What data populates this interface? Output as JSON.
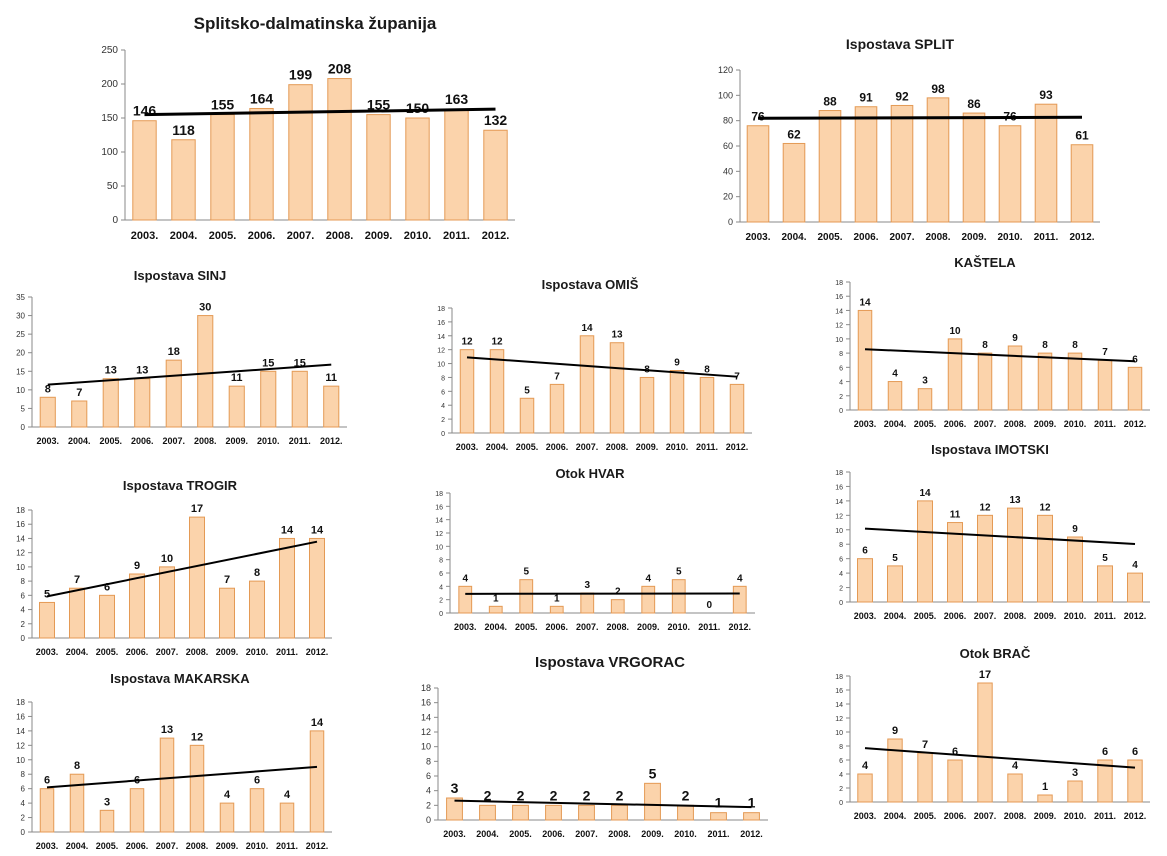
{
  "bar_fill": "#fbd3ab",
  "bar_stroke": "#e49a55",
  "trend_color": "#000000",
  "chart_data": [
    {
      "type": "bar",
      "title": "Splitsko-dalmatinska županija",
      "categories": [
        "2003.",
        "2004.",
        "2005.",
        "2006.",
        "2007.",
        "2008.",
        "2009.",
        "2010.",
        "2011.",
        "2012."
      ],
      "values": [
        146,
        118,
        155,
        164,
        199,
        208,
        155,
        150,
        163,
        132
      ],
      "ylim": [
        0,
        250
      ],
      "yticks": [
        "0",
        "50",
        "100",
        "150",
        "200",
        "250"
      ],
      "trendline": "linear"
    },
    {
      "type": "bar",
      "title": "Ispostava SPLIT",
      "categories": [
        "2003.",
        "2004.",
        "2005.",
        "2006.",
        "2007.",
        "2008.",
        "2009.",
        "2010.",
        "2011.",
        "2012."
      ],
      "values": [
        76,
        62,
        88,
        91,
        92,
        98,
        86,
        76,
        93,
        61
      ],
      "ylim": [
        0,
        120
      ],
      "yticks": [
        "0",
        "20",
        "40",
        "60",
        "80",
        "100",
        "120"
      ],
      "trendline": "linear"
    },
    {
      "type": "bar",
      "title": "Ispostava SINJ",
      "categories": [
        "2003.",
        "2004.",
        "2005.",
        "2006.",
        "2007.",
        "2008.",
        "2009.",
        "2010.",
        "2011.",
        "2012."
      ],
      "values": [
        8,
        7,
        13,
        13,
        18,
        30,
        11,
        15,
        15,
        11
      ],
      "ylim": [
        0,
        35
      ],
      "yticks": [
        "0",
        "5",
        "10",
        "15",
        "20",
        "25",
        "30",
        "35"
      ],
      "trendline": "linear"
    },
    {
      "type": "bar",
      "title": "Ispostava OMIŠ",
      "categories": [
        "2003.",
        "2004.",
        "2005.",
        "2006.",
        "2007.",
        "2008.",
        "2009.",
        "2010.",
        "2011.",
        "2012."
      ],
      "values": [
        12,
        12,
        5,
        7,
        14,
        13,
        8,
        9,
        8,
        7
      ],
      "ylim": [
        0,
        18
      ],
      "yticks": [
        "0",
        "2",
        "4",
        "6",
        "8",
        "10",
        "12",
        "14",
        "16",
        "18"
      ],
      "trendline": "linear"
    },
    {
      "type": "bar",
      "title": "KAŠTELA",
      "categories": [
        "2003.",
        "2004.",
        "2005.",
        "2006.",
        "2007.",
        "2008.",
        "2009.",
        "2010.",
        "2011.",
        "2012."
      ],
      "values": [
        14,
        4,
        3,
        10,
        8,
        9,
        8,
        8,
        7,
        6
      ],
      "ylim": [
        0,
        18
      ],
      "yticks": [
        "0",
        "2",
        "4",
        "6",
        "8",
        "10",
        "12",
        "14",
        "16",
        "18"
      ],
      "trendline": "linear"
    },
    {
      "type": "bar",
      "title": "Ispostava TROGIR",
      "categories": [
        "2003.",
        "2004.",
        "2005.",
        "2006.",
        "2007.",
        "2008.",
        "2009.",
        "2010.",
        "2011.",
        "2012."
      ],
      "values": [
        5,
        7,
        6,
        9,
        10,
        17,
        7,
        8,
        14,
        14
      ],
      "ylim": [
        0,
        18
      ],
      "yticks": [
        "0",
        "2",
        "4",
        "6",
        "8",
        "10",
        "12",
        "14",
        "16",
        "18"
      ],
      "trendline": "linear"
    },
    {
      "type": "bar",
      "title": "Otok HVAR",
      "categories": [
        "2003.",
        "2004.",
        "2005.",
        "2006.",
        "2007.",
        "2008.",
        "2009.",
        "2010.",
        "2011.",
        "2012."
      ],
      "values": [
        4,
        1,
        5,
        1,
        3,
        2,
        4,
        5,
        0,
        4
      ],
      "ylim": [
        0,
        18
      ],
      "yticks": [
        "0",
        "2",
        "4",
        "6",
        "8",
        "10",
        "12",
        "14",
        "16",
        "18"
      ],
      "trendline": "linear"
    },
    {
      "type": "bar",
      "title": "Ispostava IMOTSKI",
      "categories": [
        "2003.",
        "2004.",
        "2005.",
        "2006.",
        "2007.",
        "2008.",
        "2009.",
        "2010.",
        "2011.",
        "2012."
      ],
      "values": [
        6,
        5,
        14,
        11,
        12,
        13,
        12,
        9,
        5,
        4
      ],
      "ylim": [
        0,
        18
      ],
      "yticks": [
        "0",
        "2",
        "4",
        "6",
        "8",
        "10",
        "12",
        "14",
        "16",
        "18"
      ],
      "trendline": "linear"
    },
    {
      "type": "bar",
      "title": "Ispostava MAKARSKA",
      "categories": [
        "2003.",
        "2004.",
        "2005.",
        "2006.",
        "2007.",
        "2008.",
        "2009.",
        "2010.",
        "2011.",
        "2012."
      ],
      "values": [
        6,
        8,
        3,
        6,
        13,
        12,
        4,
        6,
        4,
        14
      ],
      "ylim": [
        0,
        18
      ],
      "yticks": [
        "0",
        "2",
        "4",
        "6",
        "8",
        "10",
        "12",
        "14",
        "16",
        "18"
      ],
      "trendline": "linear"
    },
    {
      "type": "bar",
      "title": "Ispostava VRGORAC",
      "categories": [
        "2003.",
        "2004.",
        "2005.",
        "2006.",
        "2007.",
        "2008.",
        "2009.",
        "2010.",
        "2011.",
        "2012."
      ],
      "values": [
        3,
        2,
        2,
        2,
        2,
        2,
        5,
        2,
        1,
        1
      ],
      "ylim": [
        0,
        18
      ],
      "yticks": [
        "0",
        "2",
        "4",
        "6",
        "8",
        "10",
        "12",
        "14",
        "16",
        "18"
      ],
      "trendline": "linear"
    },
    {
      "type": "bar",
      "title": "Otok BRAČ",
      "categories": [
        "2003.",
        "2004.",
        "2005.",
        "2006.",
        "2007.",
        "2008.",
        "2009.",
        "2010.",
        "2011.",
        "2012."
      ],
      "values": [
        4,
        9,
        7,
        6,
        17,
        4,
        1,
        3,
        6,
        6
      ],
      "ylim": [
        0,
        18
      ],
      "yticks": [
        "0",
        "2",
        "4",
        "6",
        "8",
        "10",
        "12",
        "14",
        "16",
        "18"
      ],
      "trendline": "linear"
    }
  ]
}
